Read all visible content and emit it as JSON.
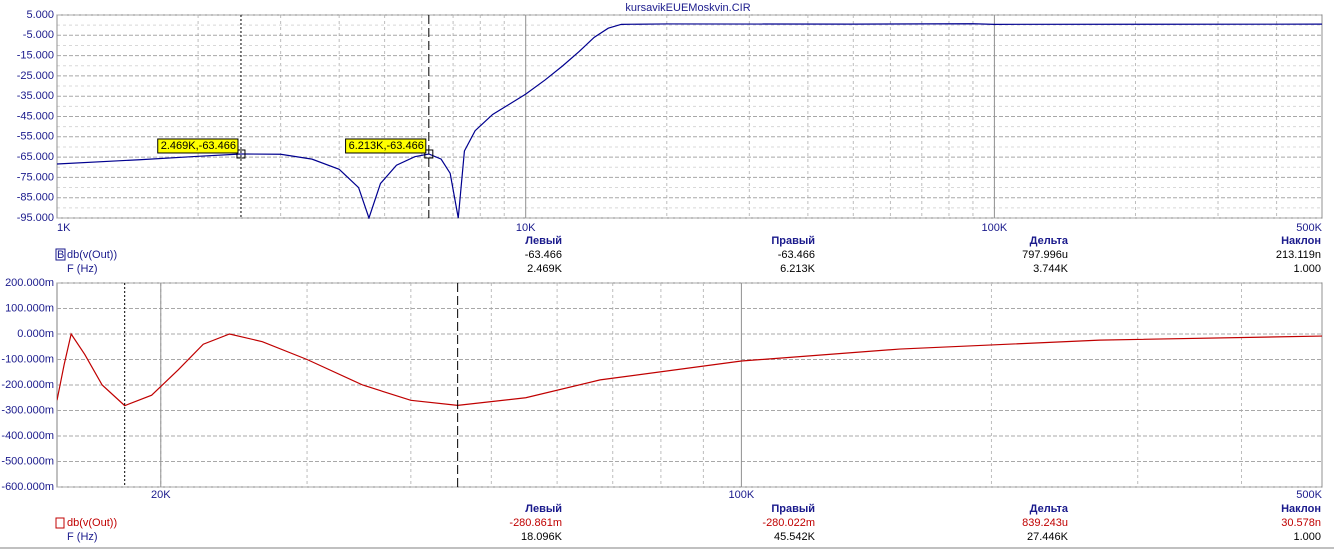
{
  "window_title": "kursavikEUEMoskvin.CIR",
  "chart_data": [
    {
      "type": "line",
      "xscale": "log",
      "grid": true,
      "xlim": [
        1000,
        500000
      ],
      "xticks": [
        {
          "value": 1000,
          "label": "1K"
        },
        {
          "value": 10000,
          "label": "10K"
        },
        {
          "value": 100000,
          "label": "100K"
        },
        {
          "value": 500000,
          "label": "500K"
        }
      ],
      "ylim": [
        -95,
        5
      ],
      "yticks": [
        {
          "value": 5,
          "label": "5.000"
        },
        {
          "value": -5,
          "label": "-5.000"
        },
        {
          "value": -15,
          "label": "-15.000"
        },
        {
          "value": -25,
          "label": "-25.000"
        },
        {
          "value": -35,
          "label": "-35.000"
        },
        {
          "value": -45,
          "label": "-45.000"
        },
        {
          "value": -55,
          "label": "-55.000"
        },
        {
          "value": -65,
          "label": "-65.000"
        },
        {
          "value": -75,
          "label": "-75.000"
        },
        {
          "value": -85,
          "label": "-85.000"
        },
        {
          "value": -95,
          "label": "-95.000"
        }
      ],
      "series": [
        {
          "name": "db(v(Out))",
          "color": "#00008f",
          "x": [
            1000,
            1500,
            2000,
            2469,
            3000,
            3500,
            4000,
            4400,
            4630,
            4900,
            5300,
            5800,
            6213,
            6600,
            6900,
            7180,
            7400,
            7800,
            8500,
            10000,
            11000,
            12000,
            13000,
            14000,
            15000,
            16000,
            20000,
            50000,
            90000,
            100000,
            500000
          ],
          "values": [
            -68.4,
            -66.3,
            -64.6,
            -63.466,
            -63.6,
            -66,
            -71,
            -80,
            -95,
            -78,
            -69,
            -64.8,
            -63.466,
            -66,
            -73,
            -95,
            -62,
            -52,
            -44,
            -34,
            -27,
            -20,
            -13,
            -6,
            -1.5,
            0.4,
            0.6,
            0.5,
            0.7,
            0.4,
            0.5
          ]
        }
      ],
      "cursors": [
        {
          "x": 2469,
          "y": -63.466,
          "label": "2.469K,-63.466"
        },
        {
          "x": 6213,
          "y": -63.466,
          "label": "6.213K,-63.466"
        }
      ],
      "trace_tag": "B",
      "readout": {
        "columns": [
          "Левый",
          "Правый",
          "Дельта",
          "Наклон"
        ],
        "rows": [
          {
            "cells": [
              "-63.466",
              "-63.466",
              "797.996u",
              "213.119n"
            ]
          },
          {
            "label": "F (Hz)",
            "cells": [
              "2.469K",
              "6.213K",
              "3.744K",
              "1.000"
            ]
          }
        ]
      }
    },
    {
      "type": "line",
      "xscale": "log",
      "grid": true,
      "xlim": [
        15000,
        500000
      ],
      "xticks": [
        {
          "value": 20000,
          "label": "20K"
        },
        {
          "value": 100000,
          "label": "100K"
        },
        {
          "value": 500000,
          "label": "500K"
        }
      ],
      "ylim": [
        -0.6,
        0.2
      ],
      "yticks": [
        {
          "value": 0.2,
          "label": "200.000m"
        },
        {
          "value": 0.1,
          "label": "100.000m"
        },
        {
          "value": 0,
          "label": "0.000m"
        },
        {
          "value": -0.1,
          "label": "-100.000m"
        },
        {
          "value": -0.2,
          "label": "-200.000m"
        },
        {
          "value": -0.3,
          "label": "-300.000m"
        },
        {
          "value": -0.4,
          "label": "-400.000m"
        },
        {
          "value": -0.5,
          "label": "-500.000m"
        },
        {
          "value": -0.6,
          "label": "-600.000m"
        }
      ],
      "series": [
        {
          "name": "db(v(Out))",
          "color": "#c00000",
          "x": [
            15000,
            15300,
            15600,
            16200,
            17000,
            18096,
            19500,
            21000,
            22500,
            24200,
            26500,
            30000,
            35000,
            40000,
            45542,
            55000,
            67600,
            100000,
            155000,
            270000,
            500000
          ],
          "values": [
            -0.26,
            -0.12,
            0.0,
            -0.08,
            -0.2,
            -0.2809,
            -0.24,
            -0.14,
            -0.04,
            0.0,
            -0.03,
            -0.1,
            -0.2,
            -0.26,
            -0.28,
            -0.25,
            -0.18,
            -0.106,
            -0.059,
            -0.024,
            -0.008
          ]
        }
      ],
      "cursors": [
        {
          "x": 18096
        },
        {
          "x": 45542
        }
      ],
      "readout": {
        "columns": [
          "Левый",
          "Правый",
          "Дельта",
          "Наклон"
        ],
        "rows": [
          {
            "cells": [
              "-280.861m",
              "-280.022m",
              "839.243u",
              "30.578n"
            ]
          },
          {
            "label": "F (Hz)",
            "cells": [
              "18.096K",
              "45.542K",
              "27.446K",
              "1.000"
            ]
          }
        ]
      }
    }
  ]
}
